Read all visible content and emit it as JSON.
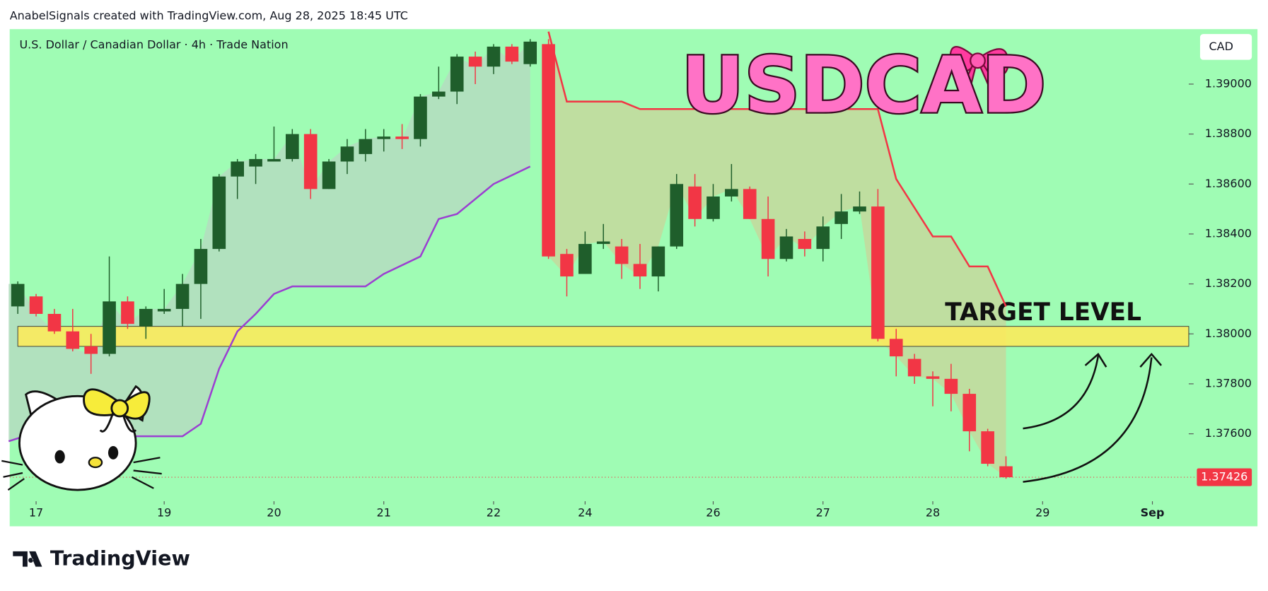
{
  "header": "AnabelSignals created with TradingView.com, Aug 28, 2025 18:45 UTC",
  "footer": {
    "brand": "TradingView"
  },
  "chart_data": {
    "type": "candlestick",
    "title": "U.S. Dollar / Canadian Dollar · 4h · Trade Nation",
    "annotation": "USDCAD",
    "currency": "CAD",
    "background": "#9ffcb4",
    "up_color": "#1f5e2b",
    "down_color": "#f23645",
    "x": [
      0,
      1,
      2,
      3,
      4,
      5,
      6,
      7,
      8,
      9,
      10,
      11,
      12,
      13,
      14,
      15,
      16,
      17,
      18,
      19,
      20,
      21,
      22,
      23,
      24,
      25,
      26,
      27,
      28,
      29,
      30,
      31,
      32,
      33,
      34,
      35,
      36,
      37,
      38,
      39,
      40,
      41,
      42,
      43,
      44,
      45,
      46,
      47,
      48,
      49,
      50,
      51,
      52,
      53,
      54
    ],
    "open": [
      1.3811,
      1.3815,
      1.3808,
      1.3801,
      1.3795,
      1.3792,
      1.3813,
      1.3803,
      1.3809,
      1.381,
      1.382,
      1.3834,
      1.3863,
      1.3867,
      1.3869,
      1.387,
      1.388,
      1.3858,
      1.3869,
      1.3872,
      1.3878,
      1.3879,
      1.3878,
      1.3895,
      1.3897,
      1.3911,
      1.3907,
      1.3915,
      1.3908,
      1.3916,
      1.3832,
      1.3824,
      1.3836,
      1.3835,
      1.3828,
      1.3823,
      1.3835,
      1.3859,
      1.3846,
      1.3855,
      1.3858,
      1.3846,
      1.383,
      1.3838,
      1.3834,
      1.3844,
      1.3849,
      1.3851,
      1.3798,
      1.379,
      1.3783,
      1.3782,
      1.3776,
      1.3761,
      1.3747
    ],
    "high": [
      1.3821,
      1.3816,
      1.381,
      1.381,
      1.38,
      1.3831,
      1.3815,
      1.3811,
      1.3818,
      1.3824,
      1.3838,
      1.3864,
      1.387,
      1.3872,
      1.3883,
      1.3882,
      1.3882,
      1.387,
      1.3878,
      1.3882,
      1.3882,
      1.3884,
      1.3896,
      1.3907,
      1.3912,
      1.3913,
      1.3916,
      1.3916,
      1.3918,
      1.3918,
      1.3834,
      1.3841,
      1.3844,
      1.3838,
      1.3836,
      1.3835,
      1.3864,
      1.3864,
      1.386,
      1.3868,
      1.3859,
      1.3855,
      1.3842,
      1.3841,
      1.3847,
      1.3856,
      1.3857,
      1.3858,
      1.3802,
      1.3792,
      1.3785,
      1.3788,
      1.3778,
      1.3762,
      1.3751
    ],
    "low": [
      1.3808,
      1.3807,
      1.38,
      1.3793,
      1.3784,
      1.3791,
      1.3802,
      1.3798,
      1.3808,
      1.3803,
      1.3806,
      1.3833,
      1.3854,
      1.386,
      1.3869,
      1.3869,
      1.3854,
      1.3858,
      1.3864,
      1.3869,
      1.3873,
      1.3874,
      1.3875,
      1.3894,
      1.3892,
      1.39,
      1.3904,
      1.3908,
      1.3907,
      1.383,
      1.3815,
      1.3824,
      1.3834,
      1.3822,
      1.3818,
      1.3817,
      1.3834,
      1.3843,
      1.3845,
      1.3853,
      1.3846,
      1.3823,
      1.3829,
      1.3831,
      1.3829,
      1.3838,
      1.3848,
      1.3797,
      1.3783,
      1.378,
      1.3771,
      1.3769,
      1.3753,
      1.3747,
      1.3742
    ],
    "close": [
      1.382,
      1.3808,
      1.3801,
      1.3794,
      1.3792,
      1.3813,
      1.3804,
      1.381,
      1.381,
      1.382,
      1.3834,
      1.3863,
      1.3869,
      1.387,
      1.387,
      1.388,
      1.3858,
      1.3869,
      1.3875,
      1.3878,
      1.3879,
      1.3878,
      1.3895,
      1.3897,
      1.3911,
      1.3907,
      1.3915,
      1.3909,
      1.3917,
      1.3831,
      1.3823,
      1.3836,
      1.3837,
      1.3828,
      1.3823,
      1.3835,
      1.386,
      1.3846,
      1.3855,
      1.3858,
      1.3846,
      1.383,
      1.3839,
      1.3834,
      1.3843,
      1.3849,
      1.3851,
      1.3798,
      1.3791,
      1.3783,
      1.3782,
      1.3776,
      1.3761,
      1.3748,
      1.37426
    ],
    "lines": [
      {
        "color": "#9b3fd1",
        "fill": "#b4dcc0",
        "x": [
          -0.5,
          0.35,
          9,
          10,
          11,
          12,
          13,
          14,
          15,
          19,
          20,
          22,
          23,
          24,
          26,
          28
        ],
        "values": [
          1.3757,
          1.3759,
          1.3759,
          1.3764,
          1.3786,
          1.3801,
          1.3808,
          1.3816,
          1.3819,
          1.3819,
          1.3824,
          1.3831,
          1.3846,
          1.3848,
          1.386,
          1.3867
        ]
      },
      {
        "color": "#f23645",
        "fill": "#c4d89c",
        "x": [
          29,
          30,
          33,
          34,
          47,
          48,
          50,
          51,
          52,
          53,
          54
        ],
        "values": [
          1.3921,
          1.3893,
          1.3893,
          1.389,
          1.389,
          1.3862,
          1.3839,
          1.3839,
          1.3827,
          1.3827,
          1.3811
        ]
      }
    ],
    "zone": {
      "from": 1.3795,
      "to": 1.3803,
      "label": "TARGET LEVEL",
      "color": "#fdeb5a"
    },
    "last_price": 1.37426,
    "xlim": [
      -0.5,
      64
    ],
    "ylim": [
      1.3733,
      1.3922
    ],
    "xticks": [
      {
        "value": 1,
        "label": "17"
      },
      {
        "value": 8,
        "label": "19"
      },
      {
        "value": 14,
        "label": "20"
      },
      {
        "value": 20,
        "label": "21"
      },
      {
        "value": 26,
        "label": "22"
      },
      {
        "value": 31,
        "label": "24"
      },
      {
        "value": 38,
        "label": "26"
      },
      {
        "value": 44,
        "label": "27"
      },
      {
        "value": 50,
        "label": "28"
      },
      {
        "value": 56,
        "label": "29"
      },
      {
        "value": 62,
        "label": "Sep"
      }
    ],
    "yticks": [
      {
        "value": 1.376,
        "label": "1.37600"
      },
      {
        "value": 1.378,
        "label": "1.37800"
      },
      {
        "value": 1.38,
        "label": "1.38000"
      },
      {
        "value": 1.382,
        "label": "1.38200"
      },
      {
        "value": 1.384,
        "label": "1.38400"
      },
      {
        "value": 1.386,
        "label": "1.38600"
      },
      {
        "value": 1.388,
        "label": "1.38800"
      },
      {
        "value": 1.39,
        "label": "1.39000"
      }
    ],
    "grid": false
  }
}
